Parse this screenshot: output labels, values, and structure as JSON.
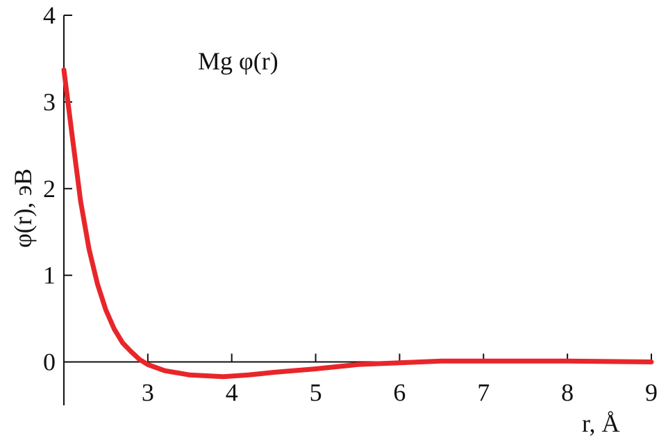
{
  "chart_data": {
    "type": "line",
    "title": "Mg φ(r)",
    "y_label": "φ(r), эВ",
    "x_label": "r, Å",
    "x": [
      2.0,
      2.1,
      2.2,
      2.3,
      2.4,
      2.5,
      2.6,
      2.7,
      2.8,
      2.9,
      3.0,
      3.2,
      3.5,
      3.9,
      4.2,
      4.5,
      5.0,
      5.5,
      6.0,
      6.5,
      7.0,
      7.5,
      8.0,
      8.5,
      9.0
    ],
    "series": [
      {
        "color": "#e8262a",
        "values": [
          3.37,
          2.6,
          1.85,
          1.3,
          0.9,
          0.6,
          0.38,
          0.22,
          0.12,
          0.03,
          -0.03,
          -0.1,
          -0.15,
          -0.17,
          -0.15,
          -0.12,
          -0.08,
          -0.03,
          -0.01,
          0.01,
          0.01,
          0.01,
          0.01,
          0.005,
          0.0
        ]
      }
    ],
    "xlim": [
      2,
      9
    ],
    "ylim": [
      -0.5,
      4
    ],
    "xticks": [
      3,
      4,
      5,
      6,
      7,
      8,
      9
    ],
    "yticks": [
      0,
      1,
      2,
      3,
      4
    ]
  }
}
